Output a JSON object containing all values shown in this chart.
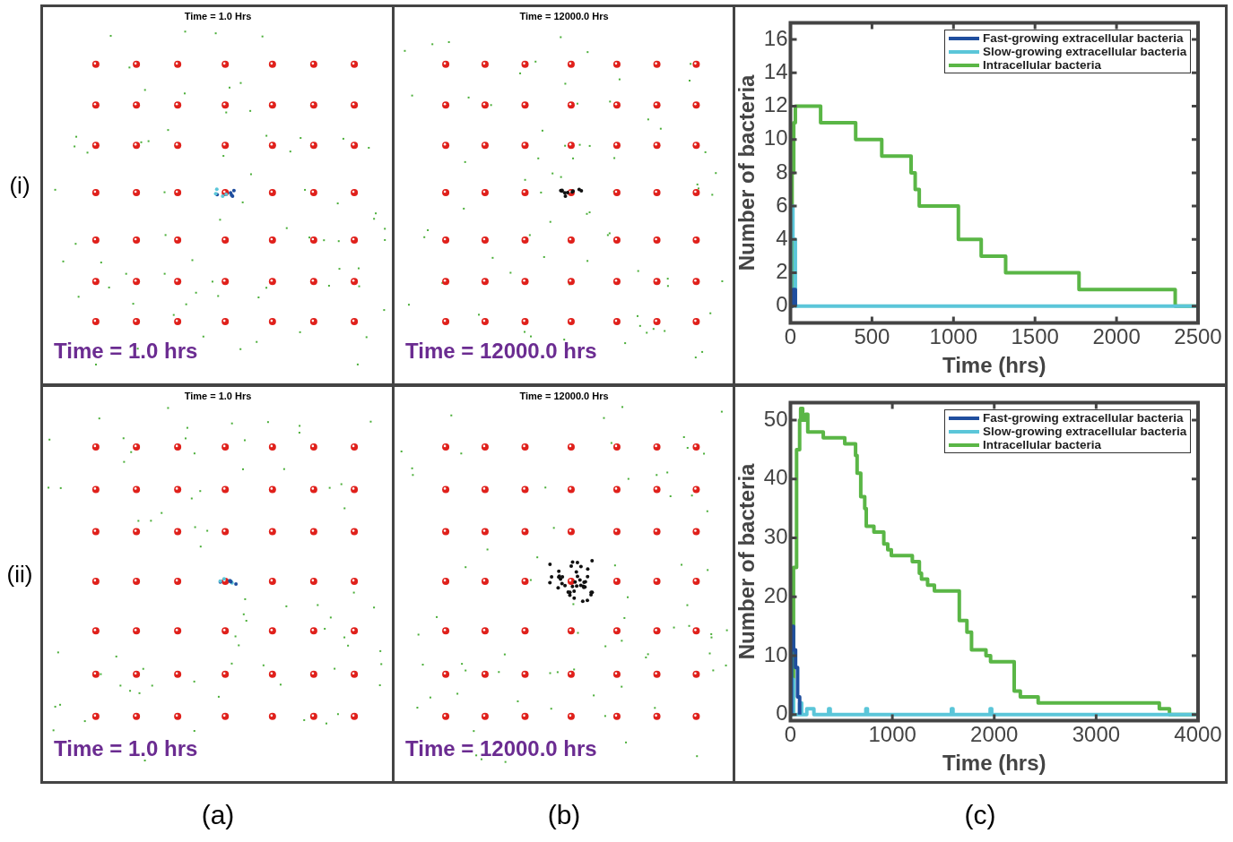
{
  "chart_data": [
    {
      "type": "other",
      "title": "Time = 1.0 Hrs",
      "annotations": [
        "Time = 1.0 hrs",
        "(i)"
      ]
    },
    {
      "type": "other",
      "title": "Time = 12000.0 Hrs",
      "annotations": [
        "Time = 12000.0 hrs"
      ]
    },
    {
      "type": "step",
      "xlabel": "Time (hrs)",
      "ylabel": "Number of bacteria",
      "xlim": [
        0,
        2500
      ],
      "ylim": [
        -1,
        17
      ],
      "xticks": [
        0,
        500,
        1000,
        1500,
        2000,
        2500
      ],
      "yticks": [
        0,
        2,
        4,
        6,
        8,
        10,
        12,
        14,
        16
      ],
      "grid": false,
      "legend": "top right",
      "series": [
        {
          "name": "Fast-growing extracellular bacteria",
          "color": "#1f4e9e",
          "x": [
            0,
            15,
            30
          ],
          "values": [
            0,
            1,
            0
          ]
        },
        {
          "name": "Slow-growing extracellular bacteria",
          "color": "#5bc6d9",
          "x": [
            0,
            5,
            15,
            30,
            2500
          ],
          "values": [
            0,
            6,
            4,
            0,
            0
          ]
        },
        {
          "name": "Intracellular bacteria",
          "color": "#5ab646",
          "x": [
            0,
            10,
            20,
            30,
            185,
            400,
            560,
            740,
            765,
            790,
            1030,
            1170,
            1320,
            1770,
            2360,
            2500
          ],
          "values": [
            0,
            8,
            11,
            12,
            11,
            10,
            9,
            8,
            7,
            6,
            4,
            3,
            2,
            1,
            0,
            0
          ]
        }
      ]
    },
    {
      "type": "other",
      "title": "Time = 1.0 Hrs",
      "annotations": [
        "Time = 1.0 hrs",
        "(ii)",
        "(a)"
      ]
    },
    {
      "type": "other",
      "title": "Time = 12000.0 Hrs",
      "annotations": [
        "Time = 12000.0 hrs",
        "(b)"
      ]
    },
    {
      "type": "step",
      "xlabel": "Time (hrs)",
      "ylabel": "Number of bacteria",
      "xlim": [
        0,
        4000
      ],
      "ylim": [
        -1,
        53
      ],
      "xticks": [
        0,
        1000,
        2000,
        3000,
        4000
      ],
      "yticks": [
        0,
        10,
        20,
        30,
        40,
        50
      ],
      "grid": false,
      "legend": "top right",
      "annotations": [
        "(c)"
      ],
      "series": [
        {
          "name": "Fast-growing extracellular bacteria",
          "color": "#1f4e9e",
          "x": [
            0,
            10,
            30,
            50,
            70,
            90
          ],
          "values": [
            0,
            15,
            11,
            8,
            3,
            0
          ]
        },
        {
          "name": "Slow-growing extracellular bacteria",
          "color": "#5bc6d9",
          "x": [
            0,
            5,
            30,
            90,
            110,
            160,
            230,
            375,
            390,
            740,
            755,
            1580,
            1595,
            1960,
            1975,
            4000
          ],
          "values": [
            0,
            6,
            0,
            2,
            0,
            1,
            0,
            1,
            0,
            1,
            0,
            1,
            0,
            1,
            0,
            0
          ]
        },
        {
          "name": "Intracellular bacteria",
          "color": "#5ab646",
          "x": [
            0,
            30,
            60,
            90,
            100,
            120,
            150,
            170,
            322,
            533,
            639,
            654,
            690,
            729,
            744,
            819,
            916,
            955,
            990,
            1196,
            1265,
            1286,
            1346,
            1413,
            1657,
            1732,
            1777,
            1919,
            1964,
            2196,
            2256,
            2431,
            3620,
            3720,
            4000
          ],
          "values": [
            0,
            25,
            45,
            50,
            52,
            50,
            51,
            48,
            47,
            46,
            44,
            41,
            37,
            35,
            32,
            31,
            29,
            28,
            27,
            26,
            24,
            23,
            22,
            21,
            16,
            14,
            11,
            10,
            9,
            4,
            3,
            2,
            1,
            0,
            0
          ]
        }
      ]
    }
  ]
}
